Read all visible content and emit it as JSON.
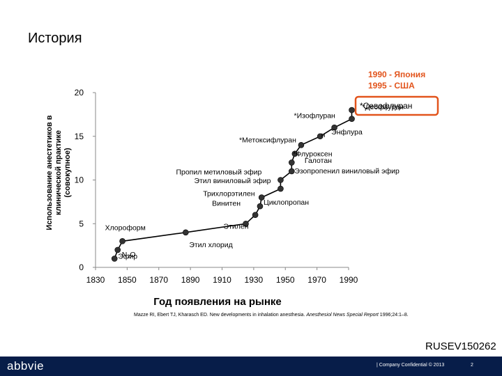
{
  "page": {
    "title": "История",
    "note_lines": [
      "1990 - Япония",
      "1995 - США"
    ],
    "citation": {
      "text": "Mazze RI, Ebert TJ, Kharasch ED. New developments in inhalation anesthesia.",
      "journal": "Anesthesiol News Special Report",
      "details": "1996;24:1–8."
    },
    "doc_code": "RUSEV150262",
    "footer": {
      "logo": "abbvie",
      "confidential": "| Company Confidential © 2013",
      "page_number": "2"
    },
    "colors": {
      "accent": "#e2541c",
      "footer_bg": "#071d49",
      "line": "#000000"
    }
  },
  "chart_data": {
    "type": "line",
    "xlabel": "Год появления на рынке",
    "ylabel_lines": [
      "Использование анестетиков в",
      "клинической практике",
      "(совокупное)"
    ],
    "xlim": [
      1830,
      1990
    ],
    "ylim": [
      0,
      20
    ],
    "x_ticks": [
      "1830",
      "1850",
      "1870",
      "1890",
      "1910",
      "1930",
      "1950",
      "1970",
      "1990"
    ],
    "y_ticks": [
      "0",
      "5",
      "10",
      "15",
      "20"
    ],
    "highlight_label": "*Севофлуран",
    "series": [
      {
        "points": [
          {
            "x": 1842,
            "y": 1,
            "label": "Эфир"
          },
          {
            "x": 1844,
            "y": 2,
            "label": "N₂O"
          },
          {
            "x": 1847,
            "y": 3,
            "label": "Хлороформ"
          },
          {
            "x": 1887,
            "y": 4,
            "label": "Этил хлорид"
          },
          {
            "x": 1925,
            "y": 5,
            "label": "Этилен"
          },
          {
            "x": 1931,
            "y": 6,
            "label": "Винитен"
          },
          {
            "x": 1934,
            "y": 7,
            "label": "Циклопропан"
          },
          {
            "x": 1935,
            "y": 8,
            "label": "Трихлорэтилен"
          },
          {
            "x": 1947,
            "y": 9,
            "label": "Этил виниловый эфир"
          },
          {
            "x": 1947,
            "y": 10,
            "label": "Пропил метиловый эфир"
          },
          {
            "x": 1954,
            "y": 11,
            "label": "Эзопропенил виниловый эфир"
          },
          {
            "x": 1954,
            "y": 12,
            "label": "*Флуроксен"
          },
          {
            "x": 1956,
            "y": 13,
            "label": "Галотан"
          },
          {
            "x": 1960,
            "y": 14,
            "label": "*Метоксифлуран"
          },
          {
            "x": 1972,
            "y": 15,
            "label": "Энфлура"
          },
          {
            "x": 1981,
            "y": 16,
            "label": "н"
          },
          {
            "x": 1992,
            "y": 17,
            "label": "*Изофлуран"
          },
          {
            "x": 1992,
            "y": 18,
            "label": "*Десфлуран"
          }
        ]
      }
    ]
  }
}
